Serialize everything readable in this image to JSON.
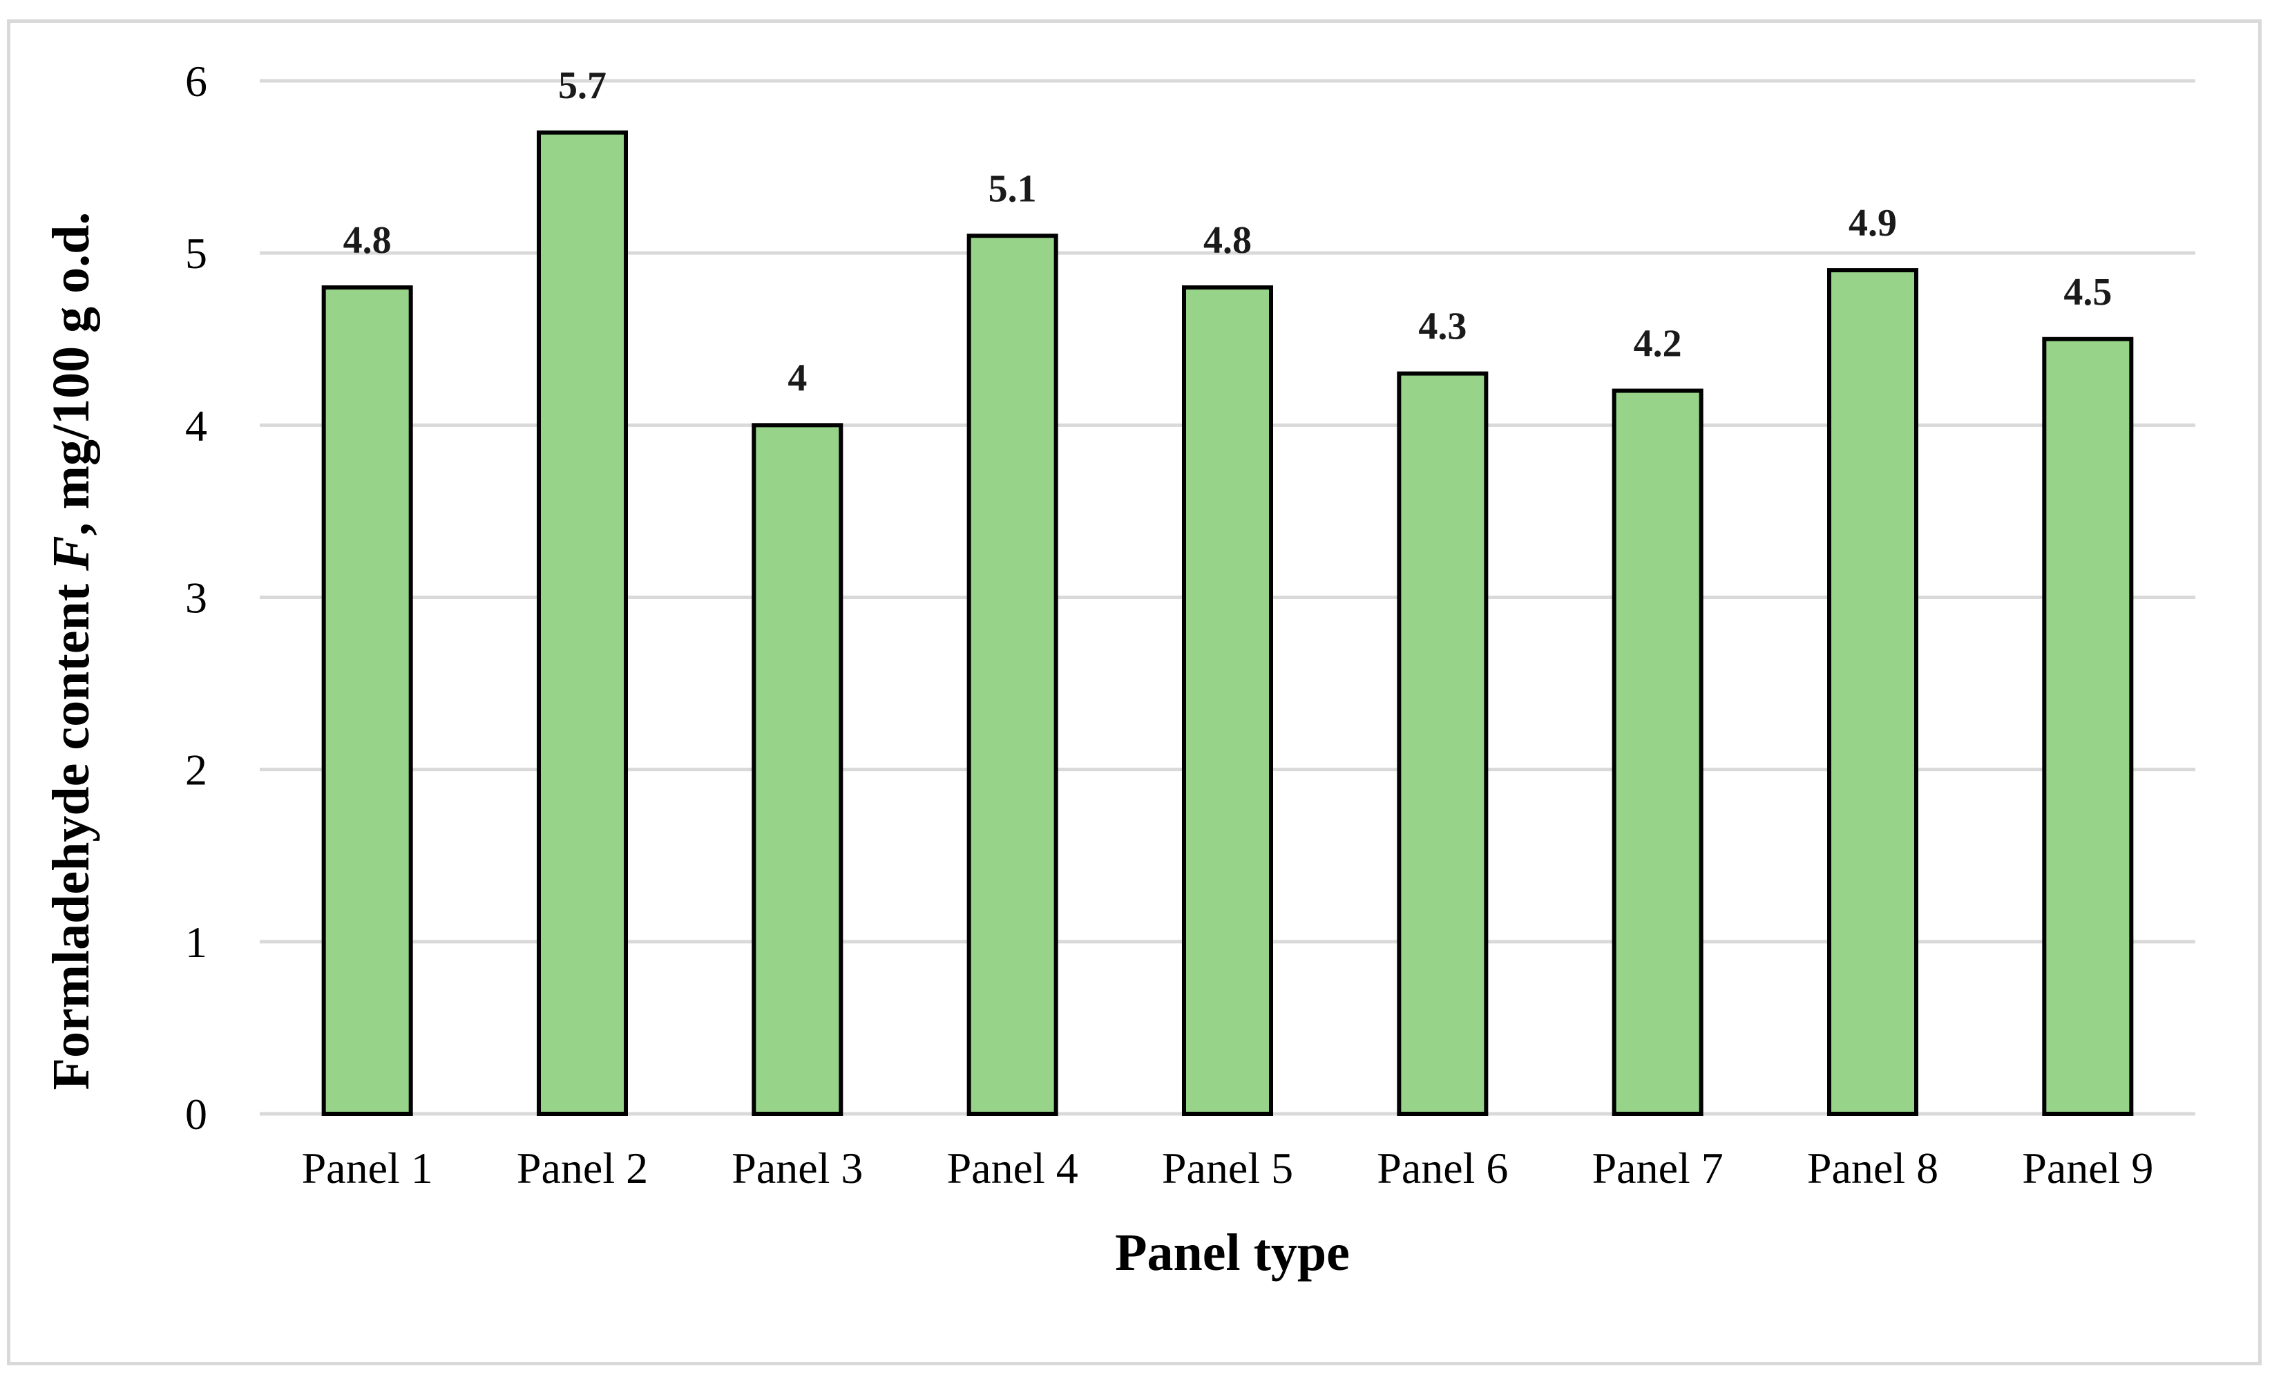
{
  "chart_data": {
    "type": "bar",
    "title": "",
    "xlabel": "Panel type",
    "ylabel_parts": [
      "Formladehyde content ",
      "F",
      ", mg/100 g o.d."
    ],
    "categories": [
      "Panel 1",
      "Panel 2",
      "Panel 3",
      "Panel 4",
      "Panel 5",
      "Panel 6",
      "Panel 7",
      "Panel 8",
      "Panel 9"
    ],
    "values": [
      4.8,
      5.7,
      4,
      5.1,
      4.8,
      4.3,
      4.2,
      4.9,
      4.5
    ],
    "data_labels": [
      "4.8",
      "5.7",
      "4",
      "5.1",
      "4.8",
      "4.3",
      "4.2",
      "4.9",
      "4.5"
    ],
    "ylim": [
      0,
      6
    ],
    "yticks": [
      0,
      1,
      2,
      3,
      4,
      5,
      6
    ],
    "grid": true,
    "legend": "none",
    "colors": {
      "bar_fill": "#97d48a",
      "bar_stroke": "#000000",
      "gridline": "#d9d9d9",
      "frame": "#d9d9d9"
    }
  }
}
